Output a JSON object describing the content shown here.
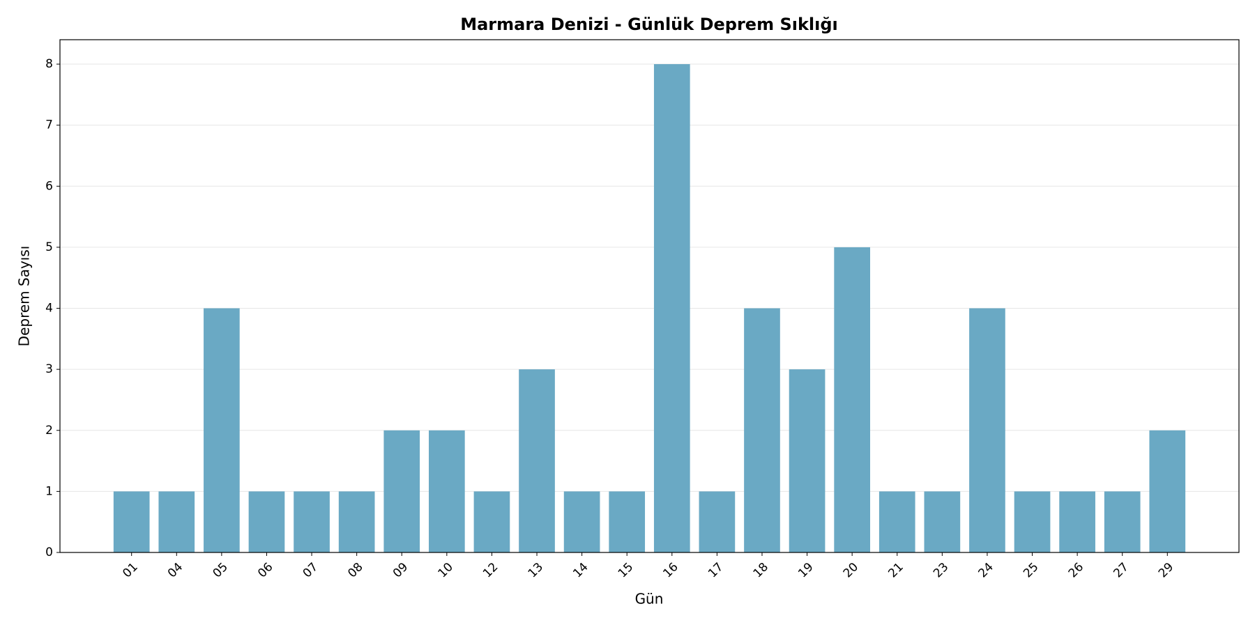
{
  "chart_data": {
    "type": "bar",
    "title": "Marmara Denizi - Günlük Deprem Sıklığı",
    "x_label": "Gün",
    "y_label": "Deprem Sayısı",
    "categories": [
      "01",
      "04",
      "05",
      "06",
      "07",
      "08",
      "09",
      "10",
      "12",
      "13",
      "14",
      "15",
      "16",
      "17",
      "18",
      "19",
      "20",
      "21",
      "23",
      "24",
      "25",
      "26",
      "27",
      "29"
    ],
    "values": [
      1,
      1,
      4,
      1,
      1,
      1,
      2,
      2,
      1,
      3,
      1,
      1,
      8,
      1,
      4,
      3,
      5,
      1,
      1,
      4,
      1,
      1,
      1,
      2
    ],
    "color": "#6aa9c4",
    "ylim": [
      0,
      8.4
    ],
    "yticks": [
      0,
      1,
      2,
      3,
      4,
      5,
      6,
      7,
      8
    ],
    "grid": true
  }
}
